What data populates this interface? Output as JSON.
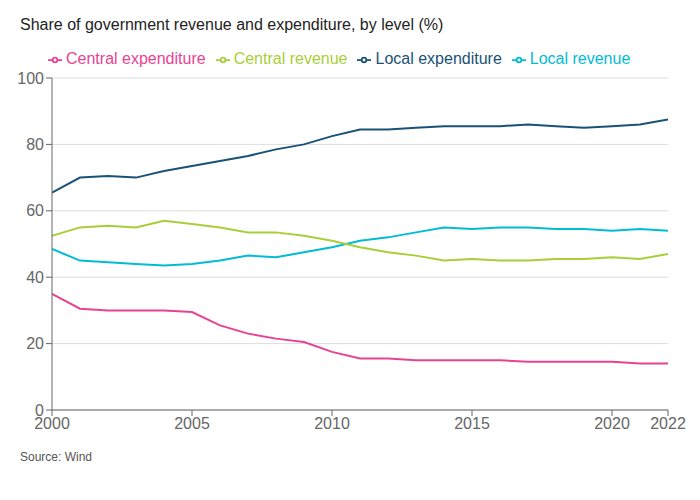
{
  "chart_data": {
    "type": "line",
    "title": "Share of government revenue and expenditure, by level (%)",
    "annotations": [
      "Source: Wind"
    ],
    "x": [
      2000,
      2001,
      2002,
      2003,
      2004,
      2005,
      2006,
      2007,
      2008,
      2009,
      2010,
      2011,
      2012,
      2013,
      2014,
      2015,
      2016,
      2017,
      2018,
      2019,
      2020,
      2021,
      2022
    ],
    "series": [
      {
        "name": "Local expenditure",
        "color": "#1a5276",
        "values": [
          65.5,
          70.0,
          70.5,
          70.0,
          72.0,
          73.5,
          75.0,
          76.5,
          78.5,
          80.0,
          82.5,
          84.5,
          84.5,
          85.0,
          85.5,
          85.5,
          85.5,
          86.0,
          85.5,
          85.0,
          85.5,
          86.0,
          87.5
        ]
      },
      {
        "name": "Central expenditure",
        "color": "#e84393",
        "values": [
          35.0,
          30.5,
          30.0,
          30.0,
          30.0,
          29.5,
          25.5,
          23.0,
          21.5,
          20.5,
          17.5,
          15.5,
          15.5,
          15.0,
          15.0,
          15.0,
          15.0,
          14.5,
          14.5,
          14.5,
          14.5,
          14.0,
          14.0
        ]
      },
      {
        "name": "Local revenue",
        "color": "#00bcd4",
        "values": [
          48.5,
          45.0,
          44.5,
          44.0,
          43.5,
          44.0,
          45.0,
          46.5,
          46.0,
          47.5,
          49.0,
          51.0,
          52.0,
          53.5,
          55.0,
          54.5,
          55.0,
          55.0,
          54.5,
          54.5,
          54.0,
          54.5,
          54.0
        ]
      },
      {
        "name": "Central revenue",
        "color": "#a8cf3a",
        "values": [
          52.5,
          55.0,
          55.5,
          55.0,
          57.0,
          56.0,
          55.0,
          53.5,
          53.5,
          52.5,
          51.0,
          49.0,
          47.5,
          46.5,
          45.0,
          45.5,
          45.0,
          45.0,
          45.5,
          45.5,
          46.0,
          45.5,
          47.0
        ]
      }
    ],
    "xlim": [
      2000,
      2022
    ],
    "xticks": [
      2000,
      2005,
      2010,
      2015,
      2020,
      2022
    ],
    "ylim": [
      0,
      100
    ],
    "yticks": [
      0,
      20,
      40,
      60,
      80,
      100
    ],
    "grid": true,
    "legend": "upper left"
  }
}
